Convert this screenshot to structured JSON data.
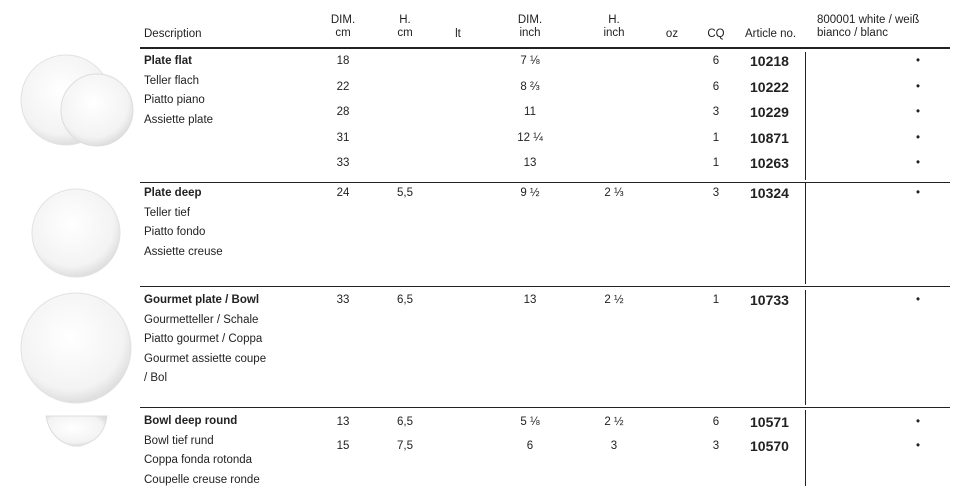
{
  "header": {
    "description": "Description",
    "dim_cm": [
      "DIM.",
      "cm"
    ],
    "h_cm": [
      "H.",
      "cm"
    ],
    "lt": [
      "lt"
    ],
    "dim_inch": [
      "DIM.",
      "inch"
    ],
    "h_inch": [
      "H.",
      "inch"
    ],
    "oz": [
      "oz"
    ],
    "cq": [
      "CQ"
    ],
    "article": [
      "Article no."
    ],
    "white": [
      "800001 white / weiß",
      "bianco / blanc"
    ]
  },
  "groups": [
    {
      "names": [
        "Plate flat",
        "Teller flach",
        "Piatto piano",
        "Assiette plate"
      ],
      "rows": [
        {
          "dim_cm": "18",
          "dim_inch": "7 ⅛",
          "cq": "6",
          "article": "10218",
          "white": "•"
        },
        {
          "dim_cm": "22",
          "dim_inch": "8 ⅔",
          "cq": "6",
          "article": "10222",
          "white": "•"
        },
        {
          "dim_cm": "28",
          "dim_inch": "11",
          "cq": "3",
          "article": "10229",
          "white": "•"
        },
        {
          "dim_cm": "31",
          "dim_inch": "12 ¼",
          "cq": "1",
          "article": "10871",
          "white": "•"
        },
        {
          "dim_cm": "33",
          "dim_inch": "13",
          "cq": "1",
          "article": "10263",
          "white": "•"
        }
      ]
    },
    {
      "names": [
        "Plate deep",
        "Teller tief",
        "Piatto fondo",
        "Assiette creuse"
      ],
      "rows": [
        {
          "dim_cm": "24",
          "h_cm": "5,5",
          "dim_inch": "9 ½",
          "h_inch": "2 ⅓",
          "cq": "3",
          "article": "10324",
          "white": "•"
        }
      ]
    },
    {
      "names": [
        "Gourmet plate / Bowl",
        "Gourmetteller / Schale",
        "Piatto gourmet / Coppa",
        "Gourmet assiette coupe",
        "/ Bol"
      ],
      "rows": [
        {
          "dim_cm": "33",
          "h_cm": "6,5",
          "dim_inch": "13",
          "h_inch": "2 ½",
          "cq": "1",
          "article": "10733",
          "white": "•"
        }
      ]
    },
    {
      "names": [
        "Bowl deep round",
        "Bowl tief rund",
        "Coppa fonda rotonda",
        "Coupelle creuse ronde"
      ],
      "rows": [
        {
          "dim_cm": "13",
          "h_cm": "6,5",
          "dim_inch": "5 ⅛",
          "h_inch": "2 ½",
          "cq": "6",
          "article": "10571",
          "white": "•"
        },
        {
          "dim_cm": "15",
          "h_cm": "7,5",
          "dim_inch": "6",
          "h_inch": "3",
          "cq": "3",
          "article": "10570",
          "white": "•"
        }
      ]
    }
  ]
}
